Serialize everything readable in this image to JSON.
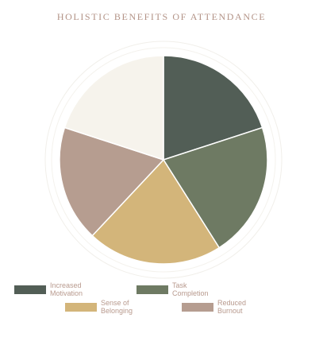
{
  "chart_data": {
    "type": "pie",
    "title": "HOLISTIC BENEFITS OF ATTENDANCE",
    "categories": [
      "Increased Motivation",
      "Task Completion",
      "Sense of Belonging",
      "Reduced Burnout",
      ""
    ],
    "values": [
      20,
      21,
      21,
      18,
      20
    ],
    "colors": [
      "#525e56",
      "#6e7a63",
      "#d3b57a",
      "#b69d90",
      "#f6f3ec"
    ],
    "legend_position": "bottom",
    "grid": false
  },
  "legend": [
    {
      "label": "Increased Motivation",
      "color": "#525e56"
    },
    {
      "label": "Task Completion",
      "color": "#6e7a63"
    },
    {
      "label": "Sense of Belonging",
      "color": "#d3b57a"
    },
    {
      "label": "Reduced Burnout",
      "color": "#b69d90"
    }
  ]
}
